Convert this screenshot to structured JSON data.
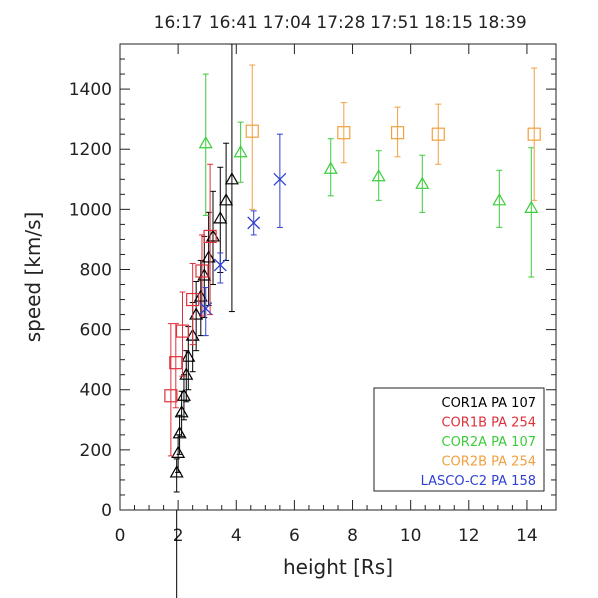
{
  "chart_data": {
    "type": "scatter",
    "title": "",
    "xlabel": "height [Rs]",
    "ylabel": "speed [km/s]",
    "xlim": [
      0,
      15
    ],
    "ylim": [
      0,
      1550
    ],
    "x_ticks": [
      0,
      2,
      4,
      6,
      8,
      10,
      12,
      14
    ],
    "y_ticks": [
      0,
      200,
      400,
      600,
      800,
      1000,
      1200,
      1400
    ],
    "top_axis": {
      "tick_labels": [
        "16:17",
        "16:41",
        "17:04",
        "17:28",
        "17:51",
        "18:15",
        "18:39"
      ],
      "tick_positions_x": [
        2.0,
        3.9,
        5.75,
        7.6,
        9.45,
        11.3,
        13.15
      ]
    },
    "grid": false,
    "legend_position": "bottom-right",
    "series": [
      {
        "name": "COR1A PA 107",
        "marker": "triangle",
        "color": "#000000",
        "points": [
          {
            "x": 1.95,
            "y": 125,
            "yerr": [
              65,
              45
            ]
          },
          {
            "x": 2.0,
            "y": 190,
            "yerr": [
              65,
              60
            ]
          },
          {
            "x": 2.05,
            "y": 255,
            "yerr": [
              70,
              60
            ]
          },
          {
            "x": 2.12,
            "y": 325,
            "yerr": [
              80,
              70
            ]
          },
          {
            "x": 2.2,
            "y": 380,
            "yerr": [
              80,
              70
            ]
          },
          {
            "x": 2.28,
            "y": 450,
            "yerr": [
              90,
              80
            ]
          },
          {
            "x": 2.35,
            "y": 510,
            "yerr": [
              110,
              100
            ]
          },
          {
            "x": 2.5,
            "y": 580,
            "yerr": [
              120,
              110
            ]
          },
          {
            "x": 2.62,
            "y": 650,
            "yerr": [
              120,
              110
            ]
          },
          {
            "x": 2.78,
            "y": 710,
            "yerr": [
              130,
              120
            ]
          },
          {
            "x": 2.9,
            "y": 780,
            "yerr": [
              140,
              130
            ]
          },
          {
            "x": 3.05,
            "y": 840,
            "yerr": [
              160,
              150
            ]
          },
          {
            "x": 3.2,
            "y": 910,
            "yerr": [
              160,
              150
            ]
          },
          {
            "x": 3.45,
            "y": 970,
            "yerr": [
              180,
              170
            ]
          },
          {
            "x": 3.65,
            "y": 1030,
            "yerr": [
              200,
              190
            ]
          },
          {
            "x": 3.85,
            "y": 1100,
            "yerr": [
              440,
              450
            ]
          }
        ]
      },
      {
        "name": "COR1B PA 254",
        "marker": "square",
        "color": "#e0303a",
        "points": [
          {
            "x": 1.75,
            "y": 380,
            "yerr": [
              200,
              240
            ]
          },
          {
            "x": 1.92,
            "y": 490,
            "yerr": [
              150,
              130
            ]
          },
          {
            "x": 2.15,
            "y": 595,
            "yerr": [
              150,
              130
            ]
          },
          {
            "x": 2.5,
            "y": 700,
            "yerr": [
              150,
              120
            ]
          },
          {
            "x": 2.82,
            "y": 795,
            "yerr": [
              150,
              120
            ]
          },
          {
            "x": 3.1,
            "y": 910,
            "yerr": [
              260,
              240
            ]
          }
        ]
      },
      {
        "name": "COR2A PA 107",
        "marker": "triangle",
        "color": "#3ccc3c",
        "points": [
          {
            "x": 2.95,
            "y": 1220,
            "yerr": [
              240,
              230
            ]
          },
          {
            "x": 4.15,
            "y": 1190,
            "yerr": [
              100,
              100
            ]
          },
          {
            "x": 7.25,
            "y": 1135,
            "yerr": [
              90,
              100
            ]
          },
          {
            "x": 8.9,
            "y": 1110,
            "yerr": [
              80,
              85
            ]
          },
          {
            "x": 10.4,
            "y": 1085,
            "yerr": [
              95,
              95
            ]
          },
          {
            "x": 13.05,
            "y": 1030,
            "yerr": [
              90,
              100
            ]
          },
          {
            "x": 14.15,
            "y": 1005,
            "yerr": [
              230,
              200
            ]
          }
        ]
      },
      {
        "name": "COR2B PA 254",
        "marker": "square",
        "color": "#f0a040",
        "points": [
          {
            "x": 4.55,
            "y": 1260,
            "yerr": [
              260,
              220
            ]
          },
          {
            "x": 7.7,
            "y": 1255,
            "yerr": [
              100,
              100
            ]
          },
          {
            "x": 9.55,
            "y": 1255,
            "yerr": [
              80,
              85
            ]
          },
          {
            "x": 10.95,
            "y": 1250,
            "yerr": [
              100,
              100
            ]
          },
          {
            "x": 14.25,
            "y": 1250,
            "yerr": [
              220,
              220
            ]
          }
        ]
      },
      {
        "name": "LASCO-C2 PA 158",
        "marker": "x",
        "color": "#3040d0",
        "points": [
          {
            "x": 2.95,
            "y": 670,
            "yerr": [
              90,
              70
            ]
          },
          {
            "x": 3.45,
            "y": 815,
            "yerr": [
              60,
              40
            ]
          },
          {
            "x": 4.6,
            "y": 955,
            "yerr": [
              40,
              40
            ]
          },
          {
            "x": 5.5,
            "y": 1100,
            "yerr": [
              160,
              150
            ]
          }
        ]
      }
    ]
  }
}
